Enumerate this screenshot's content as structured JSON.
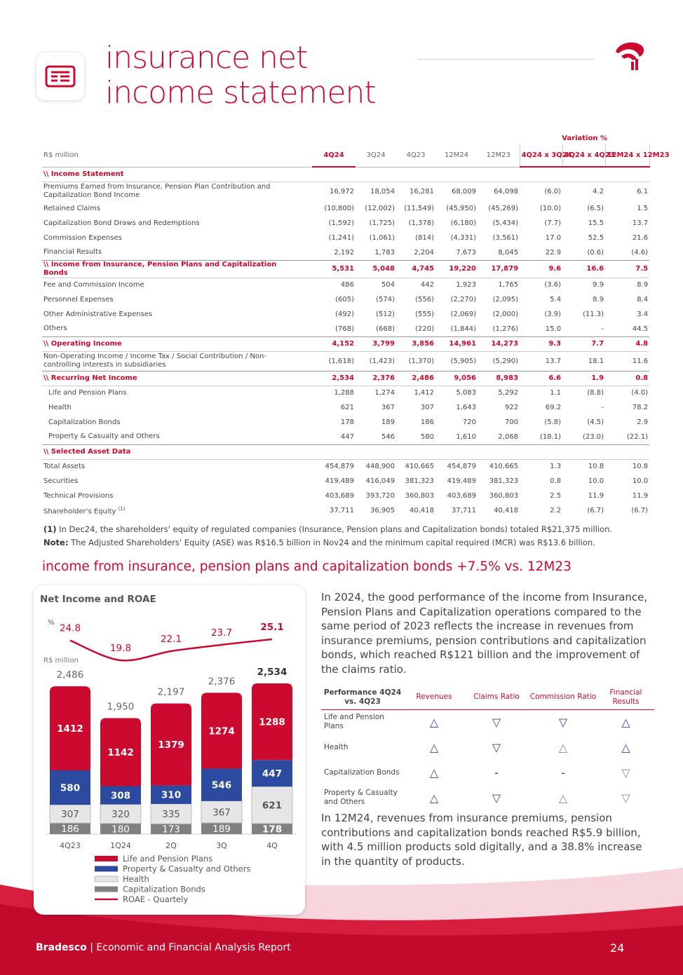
{
  "header": {
    "title": "insurance net income statement"
  },
  "table": {
    "unit": "R$ million",
    "variation_label": "Variation %",
    "columns": [
      "4Q24",
      "3Q24",
      "4Q23",
      "12M24",
      "12M23",
      "4Q24 x 3Q24",
      "4Q24 x 4Q23",
      "12M24 x 12M23"
    ],
    "rows": [
      {
        "label": "\\\\ Income Statement",
        "kind": "section"
      },
      {
        "label": "Premiums Earned from Insurance, Pension Plan Contribution and Capitalization Bond Income",
        "values": [
          "16,972",
          "18,054",
          "16,281",
          "68,009",
          "64,098",
          "(6.0)",
          "4.2",
          "6.1"
        ]
      },
      {
        "label": "Retained Claims",
        "values": [
          "(10,800)",
          "(12,002)",
          "(11,549)",
          "(45,950)",
          "(45,269)",
          "(10.0)",
          "(6.5)",
          "1.5"
        ]
      },
      {
        "label": "Capitalization Bond Draws and Redemptions",
        "values": [
          "(1,592)",
          "(1,725)",
          "(1,378)",
          "(6,180)",
          "(5,434)",
          "(7.7)",
          "15.5",
          "13.7"
        ]
      },
      {
        "label": "Commission Expenses",
        "values": [
          "(1,241)",
          "(1,061)",
          "(814)",
          "(4,331)",
          "(3,561)",
          "17.0",
          "52.5",
          "21.6"
        ]
      },
      {
        "label": "Financial Results",
        "values": [
          "2,192",
          "1,783",
          "2,204",
          "7,673",
          "8,045",
          "22.9",
          "(0.6)",
          "(4.6)"
        ]
      },
      {
        "label": "\\\\ Income from Insurance, Pension Plans and Capitalization Bonds",
        "kind": "total",
        "values": [
          "5,531",
          "5,048",
          "4,745",
          "19,220",
          "17,879",
          "9.6",
          "16.6",
          "7.5"
        ]
      },
      {
        "label": "Fee and Commission Income",
        "values": [
          "486",
          "504",
          "442",
          "1,923",
          "1,765",
          "(3.6)",
          "9.9",
          "8.9"
        ]
      },
      {
        "label": "Personnel Expenses",
        "values": [
          "(605)",
          "(574)",
          "(556)",
          "(2,270)",
          "(2,095)",
          "5.4",
          "8.9",
          "8.4"
        ]
      },
      {
        "label": "Other Administrative Expenses",
        "values": [
          "(492)",
          "(512)",
          "(555)",
          "(2,069)",
          "(2,000)",
          "(3.9)",
          "(11.3)",
          "3.4"
        ]
      },
      {
        "label": "Others",
        "values": [
          "(768)",
          "(668)",
          "(220)",
          "(1,844)",
          "(1,276)",
          "15.0",
          "-",
          "44.5"
        ]
      },
      {
        "label": "\\\\ Operating Income",
        "kind": "total",
        "values": [
          "4,152",
          "3,799",
          "3,856",
          "14,961",
          "14,273",
          "9.3",
          "7.7",
          "4.8"
        ]
      },
      {
        "label": "Non-Operating Income / Income Tax / Social Contribution / Non-controlling interests in subsidiaries",
        "values": [
          "(1,618)",
          "(1,423)",
          "(1,370)",
          "(5,905)",
          "(5,290)",
          "13.7",
          "18.1",
          "11.6"
        ]
      },
      {
        "label": "\\\\ Recurring Net Income",
        "kind": "total",
        "values": [
          "2,534",
          "2,376",
          "2,486",
          "9,056",
          "8,983",
          "6.6",
          "1.9",
          "0.8"
        ]
      },
      {
        "label": "Life and Pension Plans",
        "kind": "sub",
        "values": [
          "1,288",
          "1,274",
          "1,412",
          "5,083",
          "5,292",
          "1.1",
          "(8.8)",
          "(4.0)"
        ]
      },
      {
        "label": "Health",
        "kind": "sub",
        "values": [
          "621",
          "367",
          "307",
          "1,643",
          "922",
          "69.2",
          "-",
          "78.2"
        ]
      },
      {
        "label": "Capitalization Bonds",
        "kind": "sub",
        "values": [
          "178",
          "189",
          "186",
          "720",
          "700",
          "(5.8)",
          "(4.5)",
          "2.9"
        ]
      },
      {
        "label": "Property & Casualty and Others",
        "kind": "sub",
        "values": [
          "447",
          "546",
          "580",
          "1,610",
          "2,068",
          "(18.1)",
          "(23.0)",
          "(22.1)"
        ]
      },
      {
        "label": "\\\\ Selected Asset Data",
        "kind": "section"
      },
      {
        "label": "Total Assets",
        "values": [
          "454,879",
          "448,900",
          "410,665",
          "454,879",
          "410,665",
          "1.3",
          "10.8",
          "10.8"
        ]
      },
      {
        "label": "Securities",
        "values": [
          "419,489",
          "416,049",
          "381,323",
          "419,489",
          "381,323",
          "0.8",
          "10.0",
          "10.0"
        ]
      },
      {
        "label": "Technical Provisions",
        "values": [
          "403,689",
          "393,720",
          "360,803",
          "403,689",
          "360,803",
          "2.5",
          "11.9",
          "11.9"
        ]
      },
      {
        "label": "Shareholder's Equity",
        "note": "(1)",
        "values": [
          "37,711",
          "36,905",
          "40,418",
          "37,711",
          "40,418",
          "2.2",
          "(6.7)",
          "(6.7)"
        ]
      }
    ]
  },
  "footnotes": [
    {
      "mark": "(1)",
      "text": "In Dec24, the shareholders' equity of regulated companies (Insurance, Pension plans and Capitalization bonds) totaled R$21,375 million."
    },
    {
      "mark": "Note:",
      "text": "The Adjusted Shareholders' Equity (ASE) was R$16.5 billion in Nov24 and the minimum capital required (MCR) was R$13.6 billion."
    }
  ],
  "section_title": "income from insurance, pension plans and capitalization bonds +7.5% vs. 12M23",
  "chart_data": {
    "type": "stacked_bar_line",
    "title": "Net Income and ROAE",
    "y_label": "R$ million",
    "y2_label": "%",
    "categories": [
      "4Q23",
      "1Q24",
      "2Q",
      "3Q",
      "4Q"
    ],
    "series": [
      {
        "name": "Life and Pension Plans",
        "color": "#cc092f",
        "label_color": "#ffffff",
        "values": [
          1412,
          1142,
          1379,
          1274,
          1288
        ]
      },
      {
        "name": "Property & Casualty and Others",
        "color": "#2b4aa0",
        "label_color": "#ffffff",
        "values": [
          580,
          308,
          310,
          546,
          447
        ]
      },
      {
        "name": "Health",
        "color": "#e6e6e6",
        "label_color": "#555555",
        "values": [
          307,
          320,
          335,
          367,
          621
        ]
      },
      {
        "name": "Capitalization Bonds",
        "color": "#808080",
        "label_color": "#ffffff",
        "values": [
          186,
          180,
          173,
          189,
          178
        ]
      }
    ],
    "totals": [
      2486,
      1950,
      2197,
      2376,
      2534
    ],
    "totals_labels": [
      "2,486",
      "1,950",
      "2,197",
      "2,376",
      "2,534"
    ],
    "line": {
      "name": "ROAE - Quartely",
      "color": "#cc092f",
      "axis": "y2",
      "values": [
        24.8,
        19.8,
        22.1,
        23.7,
        25.1
      ]
    }
  },
  "paragraphs": [
    "In 2024, the good performance of the income from Insurance, Pension Plans and Capitalization operations compared to the same period of 2023 reflects the increase in revenues from insurance premiums, pension contributions and capitalization bonds, which reached R$121 billion and the improvement of the claims ratio.",
    "In 12M24, revenues from insurance premiums, pension contributions and capitalization bonds reached R$5.9 billion, with 4.5 million products sold digitally, and a 38.8% increase in the quantity of products."
  ],
  "performance": {
    "header": [
      "Performance 4Q24 vs. 4Q23",
      "Revenues",
      "Claims Ratio",
      "Commission Ratio",
      "Financial Results"
    ],
    "rows": [
      {
        "label": "Life and Pension Plans",
        "cells": [
          {
            "symbol": "△",
            "color": "#2b4aa0"
          },
          {
            "symbol": "▽",
            "color": "#2b4aa0"
          },
          {
            "symbol": "▽",
            "color": "#2b4aa0"
          },
          {
            "symbol": "△",
            "color": "#2b4aa0"
          }
        ]
      },
      {
        "label": "Health",
        "cells": [
          {
            "symbol": "△",
            "color": "#2b4aa0"
          },
          {
            "symbol": "▽",
            "color": "#2b4aa0"
          },
          {
            "symbol": "△",
            "color": "#888888"
          },
          {
            "symbol": "△",
            "color": "#2b4aa0"
          }
        ]
      },
      {
        "label": "Capitalization Bonds",
        "cells": [
          {
            "symbol": "△",
            "color": "#2b4aa0"
          },
          {
            "symbol": "-",
            "color": "#333333"
          },
          {
            "symbol": "-",
            "color": "#333333"
          },
          {
            "symbol": "▽",
            "color": "#888888"
          }
        ]
      },
      {
        "label": "Property & Casualty and Others",
        "cells": [
          {
            "symbol": "△",
            "color": "#2b4aa0"
          },
          {
            "symbol": "▽",
            "color": "#2b4aa0"
          },
          {
            "symbol": "△",
            "color": "#888888"
          },
          {
            "symbol": "▽",
            "color": "#888888"
          }
        ]
      }
    ]
  },
  "footer": {
    "brand": "Bradesco",
    "separator": "|",
    "report": "Economic and Financial Analysis Report",
    "page": "24"
  }
}
